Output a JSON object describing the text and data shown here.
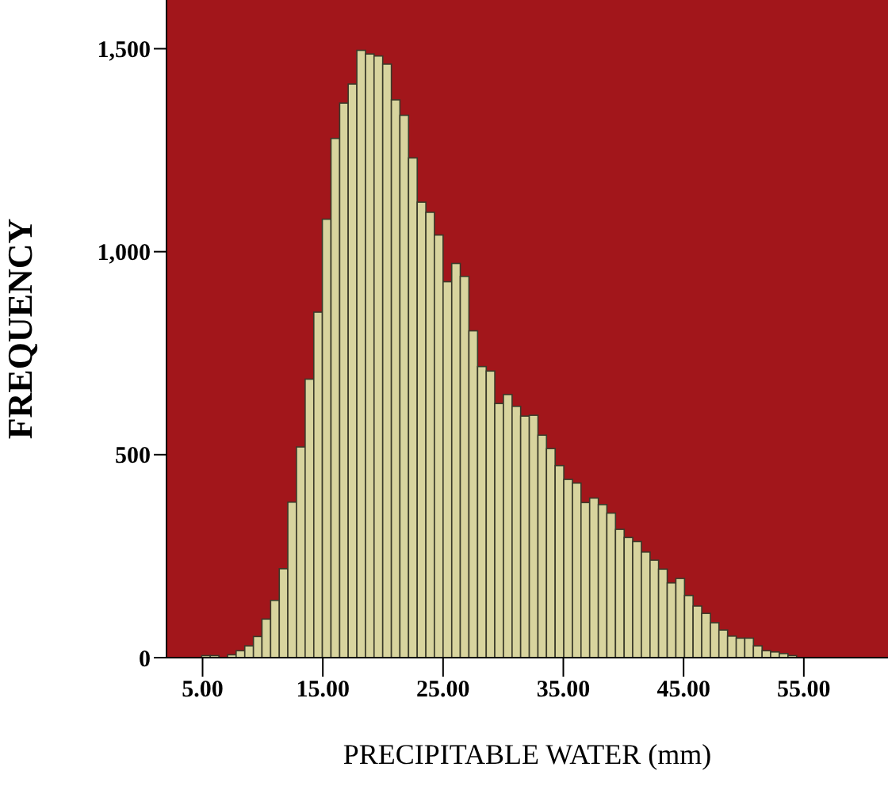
{
  "chart_data": {
    "type": "histogram",
    "xlabel": "PRECIPITABLE WATER (mm)",
    "ylabel": "FREQUENCY",
    "color": "#d8d49e",
    "bins": [
      4.92,
      5.64,
      6.36,
      7.08,
      7.79,
      8.51,
      9.23,
      9.94,
      10.66,
      11.38,
      12.09,
      12.81,
      13.53,
      14.25,
      14.96,
      15.68,
      16.4,
      17.11,
      17.83,
      18.55,
      19.26,
      19.98,
      20.7,
      21.41,
      22.13,
      22.85,
      23.57,
      24.28,
      25.0,
      25.72,
      26.43,
      27.15,
      27.87,
      28.59,
      29.3,
      30.02,
      30.74,
      31.45,
      32.17,
      32.89,
      33.6,
      34.32,
      35.04,
      35.76,
      36.47,
      37.19,
      37.91,
      38.62,
      39.34,
      40.06,
      40.77,
      41.49,
      42.21,
      42.92,
      43.64,
      44.36,
      45.08,
      45.79,
      46.51,
      47.23,
      47.94,
      48.66,
      49.38,
      50.09,
      50.81,
      51.53,
      52.24,
      52.96,
      53.68,
      54.4,
      55.11,
      55.83,
      56.55,
      57.26
    ],
    "values": [
      5,
      5,
      null,
      7,
      17,
      29,
      52,
      95,
      141,
      219,
      383,
      519,
      686,
      851,
      1080,
      1279,
      1366,
      1413,
      1496,
      1487,
      1482,
      1462,
      1374,
      1336,
      1231,
      1122,
      1097,
      1041,
      926,
      971,
      939,
      805,
      717,
      706,
      626,
      648,
      619,
      595,
      597,
      548,
      515,
      473,
      439,
      430,
      382,
      393,
      377,
      356,
      316,
      296,
      286,
      260,
      240,
      218,
      184,
      195,
      153,
      127,
      109,
      86,
      68,
      53,
      48,
      48,
      29,
      17,
      14,
      10,
      5,
      null,
      null,
      null,
      null
    ],
    "xlim": [
      2,
      62
    ],
    "xticks": [
      {
        "value": 5,
        "label": "5.00"
      },
      {
        "value": 15,
        "label": "15.00"
      },
      {
        "value": 25,
        "label": "25.00"
      },
      {
        "value": 35,
        "label": "35.00"
      },
      {
        "value": 45,
        "label": "45.00"
      },
      {
        "value": 55,
        "label": "55.00"
      }
    ],
    "ylim": [
      0,
      1620
    ],
    "yticks": [
      {
        "value": 0,
        "label": "0"
      },
      {
        "value": 500,
        "label": "500"
      },
      {
        "value": 1000,
        "label": "1,000"
      },
      {
        "value": 1500,
        "label": "1,500"
      }
    ],
    "grid": false,
    "legend": false
  }
}
